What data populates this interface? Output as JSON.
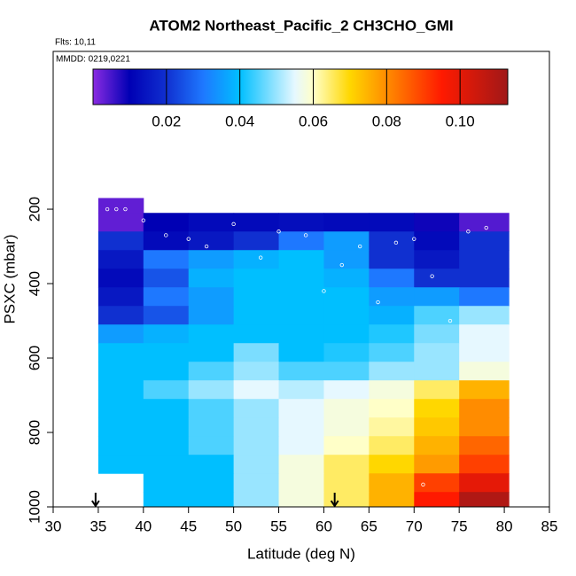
{
  "chart_data": {
    "type": "heatmap",
    "title": "ATOM2 Northeast_Pacific_2 CH3CHO_GMI",
    "subtitle": "Flts: 10,11",
    "annotation": "MMDD: 0219,0221",
    "x_label": "Latitude (deg N)",
    "y_label": "PSXC (mbar)",
    "xlim": [
      30,
      85
    ],
    "xticks": [
      30,
      35,
      40,
      45,
      50,
      55,
      60,
      65,
      70,
      75,
      80,
      85
    ],
    "ylim": [
      1000,
      -224
    ],
    "yticks": [
      200,
      400,
      600,
      800,
      1000
    ],
    "x_edges": [
      35,
      40,
      45,
      50,
      55,
      60,
      65,
      70,
      75,
      80.5
    ],
    "y_edges": [
      170,
      210,
      260,
      310,
      360,
      410,
      460,
      510,
      560,
      610,
      660,
      710,
      760,
      810,
      860,
      910,
      960,
      1000
    ],
    "z": [
      [
        0.003,
        null,
        null,
        null,
        null,
        null,
        null,
        null,
        null
      ],
      [
        0.003,
        0.01,
        0.012,
        0.012,
        0.013,
        0.012,
        0.012,
        0.009,
        0.004
      ],
      [
        0.02,
        0.012,
        0.015,
        0.02,
        0.03,
        0.035,
        0.02,
        0.012,
        0.02
      ],
      [
        0.015,
        0.03,
        0.035,
        0.038,
        0.04,
        0.035,
        0.02,
        0.015,
        0.02
      ],
      [
        0.012,
        0.025,
        0.038,
        0.04,
        0.04,
        0.038,
        0.03,
        0.02,
        0.02
      ],
      [
        0.015,
        0.03,
        0.035,
        0.04,
        0.04,
        0.04,
        0.035,
        0.035,
        0.03
      ],
      [
        0.02,
        0.025,
        0.035,
        0.04,
        0.04,
        0.04,
        0.038,
        0.045,
        0.05
      ],
      [
        0.035,
        0.038,
        0.04,
        0.04,
        0.04,
        0.04,
        0.042,
        0.048,
        0.055
      ],
      [
        0.04,
        0.04,
        0.04,
        0.048,
        0.04,
        0.042,
        0.045,
        0.05,
        0.055
      ],
      [
        0.04,
        0.04,
        0.045,
        0.05,
        0.045,
        0.045,
        0.05,
        0.05,
        0.058
      ],
      [
        0.04,
        0.045,
        0.05,
        0.055,
        0.052,
        0.055,
        0.058,
        0.065,
        0.075
      ],
      [
        0.04,
        0.04,
        0.045,
        0.05,
        0.055,
        0.058,
        0.06,
        0.07,
        0.08
      ],
      [
        0.04,
        0.04,
        0.045,
        0.05,
        0.055,
        0.058,
        0.062,
        0.072,
        0.08
      ],
      [
        0.04,
        0.04,
        0.045,
        0.05,
        0.055,
        0.06,
        0.065,
        0.075,
        0.085
      ],
      [
        0.04,
        0.04,
        0.04,
        0.05,
        0.058,
        0.065,
        0.07,
        0.078,
        0.09
      ],
      [
        null,
        0.04,
        0.04,
        0.05,
        0.058,
        0.065,
        0.075,
        0.09,
        0.1
      ],
      [
        null,
        0.04,
        0.04,
        0.05,
        0.058,
        0.065,
        0.075,
        0.095,
        0.11
      ]
    ],
    "colorscale": [
      [
        0,
        "#8a2be2"
      ],
      [
        0.01,
        "#0000b4"
      ],
      [
        0.02,
        "#1030d0"
      ],
      [
        0.03,
        "#1e78ff"
      ],
      [
        0.04,
        "#00bfff"
      ],
      [
        0.055,
        "#e6f8ff"
      ],
      [
        0.06,
        "#ffffc8"
      ],
      [
        0.07,
        "#ffd700"
      ],
      [
        0.08,
        "#ff8c00"
      ],
      [
        0.095,
        "#ff1a00"
      ],
      [
        0.113,
        "#a01818"
      ]
    ],
    "clim": [
      0,
      0.113
    ],
    "cticks": [
      0.02,
      0.04,
      0.06,
      0.08,
      {
        "value": 0.1,
        "label": "0.10"
      }
    ],
    "arrows": [
      34.7,
      61.2
    ],
    "points": {
      "color": "#ffffff",
      "x": [
        36,
        37,
        38,
        40,
        42.5,
        45,
        47,
        50,
        53,
        55,
        58,
        60,
        62,
        64,
        66,
        68,
        70,
        71,
        72,
        74,
        76,
        78
      ],
      "y": [
        200,
        200,
        200,
        230,
        270,
        280,
        300,
        240,
        330,
        260,
        270,
        420,
        350,
        300,
        450,
        290,
        280,
        940,
        380,
        500,
        260,
        250
      ]
    }
  }
}
